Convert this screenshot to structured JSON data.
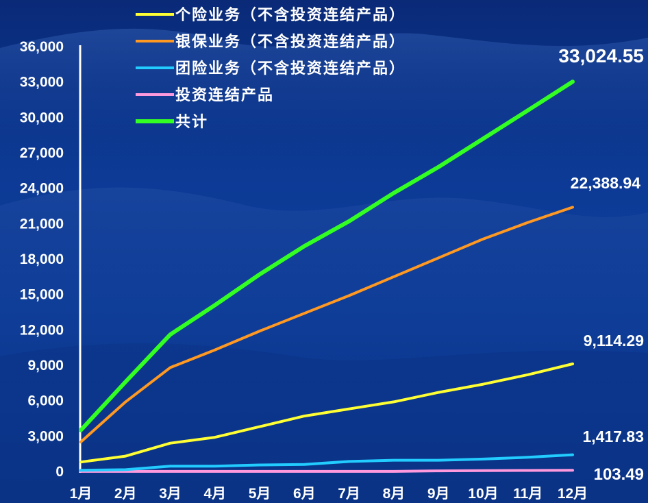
{
  "chart_data": {
    "type": "line",
    "title": "",
    "xlabel": "",
    "ylabel": "",
    "categories": [
      "1月",
      "2月",
      "3月",
      "4月",
      "5月",
      "6月",
      "7月",
      "8月",
      "9月",
      "10月",
      "11月",
      "12月"
    ],
    "ylim": [
      0,
      36000
    ],
    "yticks": [
      "0",
      "3,000",
      "6,000",
      "9,000",
      "12,000",
      "15,000",
      "18,000",
      "21,000",
      "24,000",
      "27,000",
      "30,000",
      "33,000",
      "36,000"
    ],
    "grid": false,
    "legend_position": "top-left",
    "series": [
      {
        "name": "个险业务（不含投资连结产品）",
        "color": "#ffff33",
        "values": [
          800,
          1300,
          2400,
          2900,
          3800,
          4700,
          5300,
          5900,
          6700,
          7400,
          8200,
          9114.29
        ]
      },
      {
        "name": "银保业务（不含投资连结产品）",
        "color": "#ff9922",
        "values": [
          2500,
          5900,
          8800,
          10300,
          11900,
          13400,
          14900,
          16500,
          18100,
          19700,
          21100,
          22388.94
        ]
      },
      {
        "name": "团险业务（不含投资连结产品）",
        "color": "#22ccff",
        "values": [
          100,
          150,
          450,
          450,
          550,
          600,
          850,
          950,
          950,
          1050,
          1200,
          1417.83
        ]
      },
      {
        "name": "投资连结产品",
        "color": "#ff99dd",
        "values": [
          5,
          5,
          5,
          5,
          5,
          5,
          5,
          5,
          50,
          70,
          90,
          103.49
        ]
      },
      {
        "name": "共计",
        "color": "#33ff22",
        "values": [
          3500,
          7600,
          11600,
          14100,
          16700,
          19100,
          21200,
          23600,
          25800,
          28200,
          30600,
          33024.55
        ]
      }
    ],
    "end_labels": [
      "9,114.29",
      "22,388.94",
      "1,417.83",
      "103.49",
      "33,024.55"
    ]
  }
}
